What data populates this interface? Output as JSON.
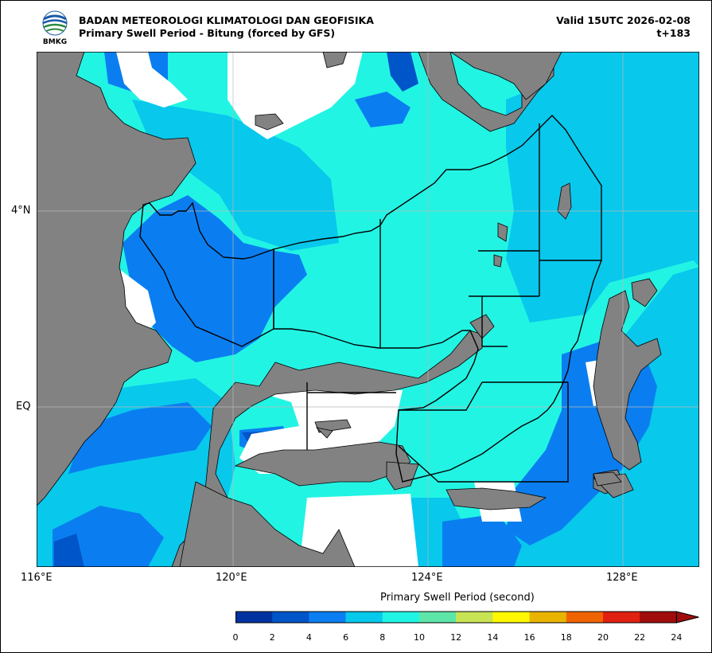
{
  "header": {
    "agency": "BADAN METEOROLOGI KLIMATOLOGI DAN GEOFISIKA",
    "product": "Primary Swell Period - Bitung (forced by GFS)",
    "valid": "Valid 15UTC 2026-02-08",
    "lead": "t+183",
    "logo_text": "BMKG"
  },
  "axes": {
    "x_ticks": [
      "116°E",
      "120°E",
      "124°E",
      "128°E"
    ],
    "y_ticks": [
      "4°N",
      "EQ"
    ]
  },
  "colorbar": {
    "title": "Primary Swell Period (second)",
    "labels": [
      "0",
      "2",
      "4",
      "6",
      "8",
      "10",
      "12",
      "14",
      "16",
      "18",
      "20",
      "22",
      "24"
    ],
    "colors": [
      "#0033a0",
      "#0055c8",
      "#0a7ef0",
      "#08c8ec",
      "#22f4e4",
      "#5ee6a8",
      "#c8e454",
      "#fff800",
      "#e8b400",
      "#f06400",
      "#e02010",
      "#a00c0c"
    ]
  },
  "colors": {
    "land": "#828282",
    "no_data": "#ffffff",
    "sea_4_6": "#0a7ef0",
    "sea_6_8": "#08c8ec",
    "sea_8_10": "#22f4e4"
  }
}
